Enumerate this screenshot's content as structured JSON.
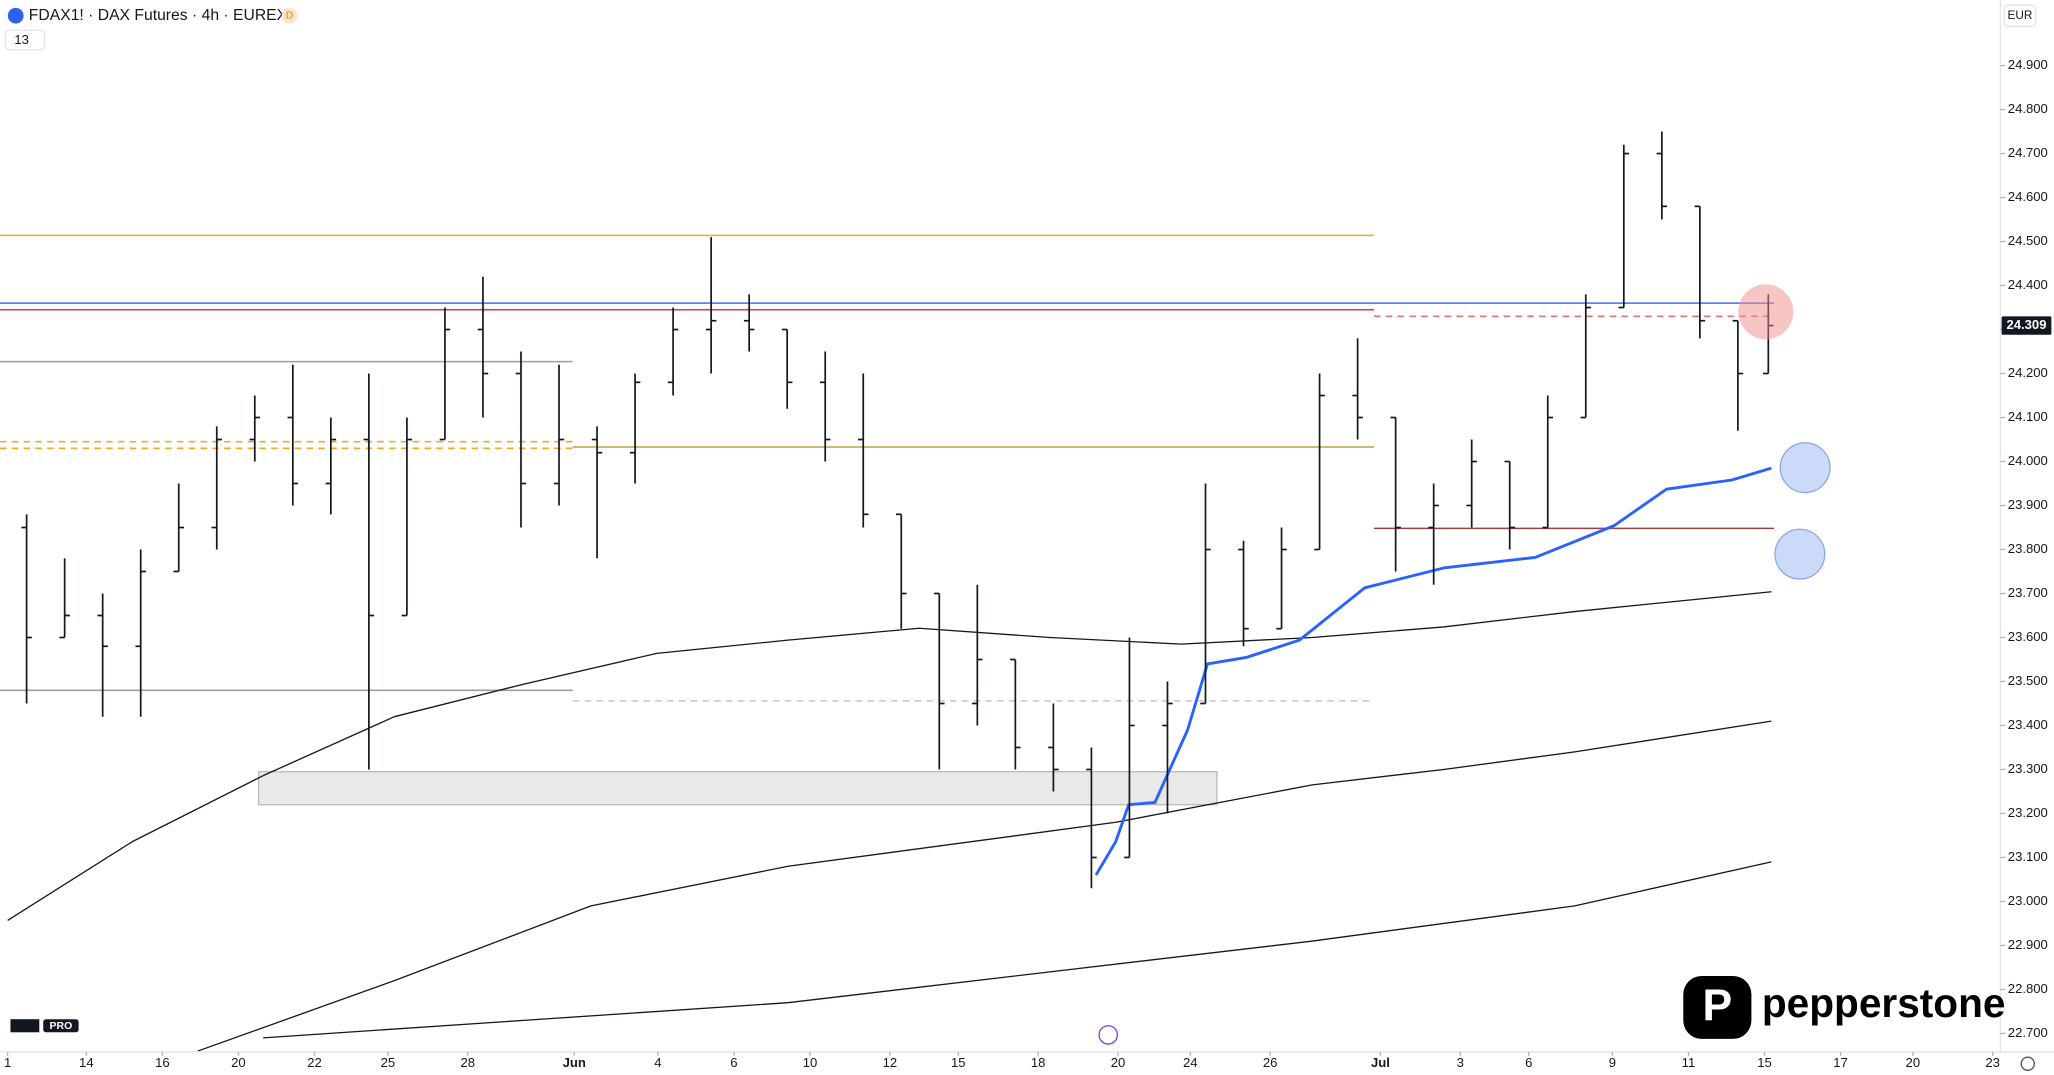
{
  "header": {
    "symbol": "FDAX1! · DAX Futures · 4h · EUREX",
    "badge": "D",
    "indicators": "13",
    "currency": "EUR",
    "tv": "PRO",
    "brand": "pepperstone"
  },
  "chart_data": {
    "type": "ohlc",
    "bar_color": "#131722",
    "xlim": [
      -0.2,
      52.4
    ],
    "ylim": [
      22.658,
      25.049
    ],
    "xticks": [
      {
        "value": 0,
        "label": "1"
      },
      {
        "value": 2.07,
        "label": "14"
      },
      {
        "value": 4.07,
        "label": "16"
      },
      {
        "value": 6.07,
        "label": "20"
      },
      {
        "value": 8.07,
        "label": "22"
      },
      {
        "value": 10.0,
        "label": "25"
      },
      {
        "value": 12.1,
        "label": "28"
      },
      {
        "value": 14.9,
        "label": "Jun"
      },
      {
        "value": 17.1,
        "label": "4"
      },
      {
        "value": 19.1,
        "label": "6"
      },
      {
        "value": 21.1,
        "label": "10"
      },
      {
        "value": 23.2,
        "label": "12"
      },
      {
        "value": 25.0,
        "label": "15"
      },
      {
        "value": 27.1,
        "label": "18"
      },
      {
        "value": 29.2,
        "label": "20"
      },
      {
        "value": 31.1,
        "label": "24"
      },
      {
        "value": 33.2,
        "label": "26"
      },
      {
        "value": 36.1,
        "label": "Jul"
      },
      {
        "value": 38.2,
        "label": "3"
      },
      {
        "value": 40.0,
        "label": "6"
      },
      {
        "value": 42.2,
        "label": "9"
      },
      {
        "value": 44.2,
        "label": "11"
      },
      {
        "value": 46.2,
        "label": "15"
      },
      {
        "value": 48.2,
        "label": "17"
      },
      {
        "value": 50.1,
        "label": "20"
      },
      {
        "value": 52.2,
        "label": "23"
      }
    ],
    "yticks": [
      {
        "value": 22.7,
        "label": "22.700"
      },
      {
        "value": 22.8,
        "label": "22.800"
      },
      {
        "value": 22.9,
        "label": "22.900"
      },
      {
        "value": 23.0,
        "label": "23.000"
      },
      {
        "value": 23.1,
        "label": "23.100"
      },
      {
        "value": 23.2,
        "label": "23.200"
      },
      {
        "value": 23.3,
        "label": "23.300"
      },
      {
        "value": 23.4,
        "label": "23.400"
      },
      {
        "value": 23.5,
        "label": "23.500"
      },
      {
        "value": 23.6,
        "label": "23.600"
      },
      {
        "value": 23.7,
        "label": "23.700"
      },
      {
        "value": 23.8,
        "label": "23.800"
      },
      {
        "value": 23.9,
        "label": "23.900"
      },
      {
        "value": 24.0,
        "label": "24.000"
      },
      {
        "value": 24.1,
        "label": "24.100"
      },
      {
        "value": 24.2,
        "label": "24.200"
      },
      {
        "value": 24.3,
        "label": "24.300"
      },
      {
        "value": 24.4,
        "label": "24.400"
      },
      {
        "value": 24.5,
        "label": "24.500"
      },
      {
        "value": 24.6,
        "label": "24.600"
      },
      {
        "value": 24.7,
        "label": "24.700"
      },
      {
        "value": 24.8,
        "label": "24.800"
      },
      {
        "value": 24.9,
        "label": "24.900"
      }
    ],
    "last_price": 24.309,
    "x": [
      0.5,
      1.5,
      2.5,
      3.5,
      4.5,
      5.5,
      6.5,
      7.5,
      8.5,
      9.5,
      10.5,
      11.5,
      12.5,
      13.5,
      14.5,
      15.5,
      16.5,
      17.5,
      18.5,
      19.5,
      20.5,
      21.5,
      22.5,
      23.5,
      24.5,
      25.5,
      26.5,
      27.5,
      28.5,
      29.5,
      30.5,
      31.5,
      32.5,
      33.5,
      34.5,
      35.5,
      36.5,
      37.5,
      38.5,
      39.5,
      40.5,
      41.5,
      42.5,
      43.5,
      44.5,
      45.5,
      46.3
    ],
    "ohlc": [
      [
        23.85,
        23.88,
        23.45,
        23.6
      ],
      [
        23.6,
        23.78,
        23.6,
        23.65
      ],
      [
        23.65,
        23.7,
        23.42,
        23.58
      ],
      [
        23.58,
        23.8,
        23.42,
        23.75
      ],
      [
        23.75,
        23.95,
        23.75,
        23.85
      ],
      [
        23.85,
        24.08,
        23.8,
        24.05
      ],
      [
        24.05,
        24.15,
        24.0,
        24.1
      ],
      [
        24.1,
        24.22,
        23.9,
        23.95
      ],
      [
        23.95,
        24.1,
        23.88,
        24.05
      ],
      [
        24.05,
        24.2,
        23.3,
        23.65
      ],
      [
        23.65,
        24.1,
        23.65,
        24.05
      ],
      [
        24.05,
        24.35,
        24.05,
        24.3
      ],
      [
        24.3,
        24.42,
        24.1,
        24.2
      ],
      [
        24.2,
        24.25,
        23.85,
        23.95
      ],
      [
        23.95,
        24.22,
        23.9,
        24.05
      ],
      [
        24.05,
        24.08,
        23.78,
        24.02
      ],
      [
        24.02,
        24.2,
        23.95,
        24.18
      ],
      [
        24.18,
        24.35,
        24.15,
        24.3
      ],
      [
        24.3,
        24.51,
        24.2,
        24.32
      ],
      [
        24.32,
        24.38,
        24.25,
        24.3
      ],
      [
        24.3,
        24.3,
        24.12,
        24.18
      ],
      [
        24.18,
        24.25,
        24.0,
        24.05
      ],
      [
        24.05,
        24.2,
        23.85,
        23.88
      ],
      [
        23.88,
        23.88,
        23.62,
        23.7
      ],
      [
        23.7,
        23.7,
        23.3,
        23.45
      ],
      [
        23.45,
        23.72,
        23.4,
        23.55
      ],
      [
        23.55,
        23.55,
        23.3,
        23.35
      ],
      [
        23.35,
        23.45,
        23.25,
        23.3
      ],
      [
        23.3,
        23.35,
        23.03,
        23.1
      ],
      [
        23.1,
        23.6,
        23.1,
        23.4
      ],
      [
        23.4,
        23.5,
        23.2,
        23.45
      ],
      [
        23.45,
        23.95,
        23.45,
        23.8
      ],
      [
        23.8,
        23.82,
        23.58,
        23.62
      ],
      [
        23.62,
        23.85,
        23.62,
        23.8
      ],
      [
        23.8,
        24.2,
        23.8,
        24.15
      ],
      [
        24.15,
        24.28,
        24.05,
        24.1
      ],
      [
        24.1,
        24.1,
        23.75,
        23.85
      ],
      [
        23.85,
        23.95,
        23.72,
        23.9
      ],
      [
        23.9,
        24.05,
        23.85,
        24.0
      ],
      [
        24.0,
        24.0,
        23.8,
        23.85
      ],
      [
        23.85,
        24.15,
        23.85,
        24.1
      ],
      [
        24.1,
        24.38,
        24.1,
        24.35
      ],
      [
        24.35,
        24.72,
        24.35,
        24.7
      ],
      [
        24.7,
        24.75,
        24.55,
        24.58
      ],
      [
        24.58,
        24.58,
        24.28,
        24.32
      ],
      [
        24.32,
        24.32,
        24.07,
        24.2
      ],
      [
        24.2,
        24.38,
        24.2,
        24.309
      ]
    ],
    "lines": [
      {
        "color": "#131722",
        "width": 1,
        "x": [
          0,
          3.28,
          6.72,
          10.17,
          13.62,
          17.07,
          20.52,
          23.97,
          27.41,
          30.86,
          34.31,
          37.76,
          41.21,
          44.66,
          46.38
        ],
        "values": [
          22.957,
          23.136,
          23.286,
          23.42,
          23.495,
          23.564,
          23.594,
          23.621,
          23.6,
          23.585,
          23.6,
          23.624,
          23.659,
          23.689,
          23.704
        ]
      },
      {
        "color": "#131722",
        "width": 1,
        "x": [
          5.0,
          10.17,
          15.34,
          20.52,
          29.14,
          34.31,
          37.76,
          41.21,
          46.38
        ],
        "values": [
          22.66,
          22.82,
          22.99,
          23.08,
          23.18,
          23.265,
          23.3,
          23.34,
          23.41
        ]
      },
      {
        "color": "#131722",
        "width": 1,
        "x": [
          6.72,
          13.62,
          20.52,
          27.41,
          34.31,
          41.21,
          46.38
        ],
        "values": [
          22.69,
          22.73,
          22.77,
          22.84,
          22.91,
          22.99,
          23.09
        ]
      },
      {
        "color": "#2962ff",
        "width": 2.2,
        "x": [
          28.62,
          29.14,
          29.48,
          30.17,
          31.03,
          31.55,
          32.59,
          33.97,
          35.69,
          37.76,
          40.17,
          42.24,
          43.62,
          45.34,
          46.38
        ],
        "values": [
          23.06,
          23.136,
          23.22,
          23.225,
          23.39,
          23.54,
          23.555,
          23.594,
          23.713,
          23.758,
          23.782,
          23.854,
          23.937,
          23.958,
          23.985
        ]
      }
    ],
    "levels": [
      {
        "value": 24.514,
        "x": [
          -0.2,
          35.93
        ],
        "color": "#f5a623",
        "dashed": false
      },
      {
        "value": 24.36,
        "x": [
          -0.2,
          46.45
        ],
        "color": "#4a6cf7",
        "dashed": false
      },
      {
        "value": 24.345,
        "x": [
          -0.2,
          35.93
        ],
        "color": "#e53935",
        "dashed": false
      },
      {
        "value": 24.33,
        "x": [
          35.93,
          46.45
        ],
        "color": "#e57373",
        "dashed": true
      },
      {
        "value": 24.227,
        "x": [
          -0.2,
          14.86
        ],
        "color": "#9e9e9e",
        "dashed": false
      },
      {
        "value": 24.045,
        "x": [
          -0.2,
          14.86
        ],
        "color": "#f5a623",
        "dashed": true
      },
      {
        "value": 24.03,
        "x": [
          -0.2,
          14.86
        ],
        "color": "#f5a623",
        "dashed": true
      },
      {
        "value": 24.033,
        "x": [
          14.86,
          35.93
        ],
        "color": "#b5a642",
        "dashed": false
      },
      {
        "value": 23.848,
        "x": [
          35.93,
          46.45
        ],
        "color": "#a04040",
        "dashed": false
      },
      {
        "value": 23.48,
        "x": [
          -0.2,
          14.86
        ],
        "color": "#9e9e9e",
        "dashed": false
      },
      {
        "value": 23.456,
        "x": [
          14.86,
          35.93
        ],
        "color": "#c8c8c8",
        "dashed": true
      }
    ],
    "zones": [
      {
        "high": 23.295,
        "low": 23.22,
        "x": [
          6.6,
          31.8
        ],
        "color": "#e0e0e0"
      }
    ]
  }
}
